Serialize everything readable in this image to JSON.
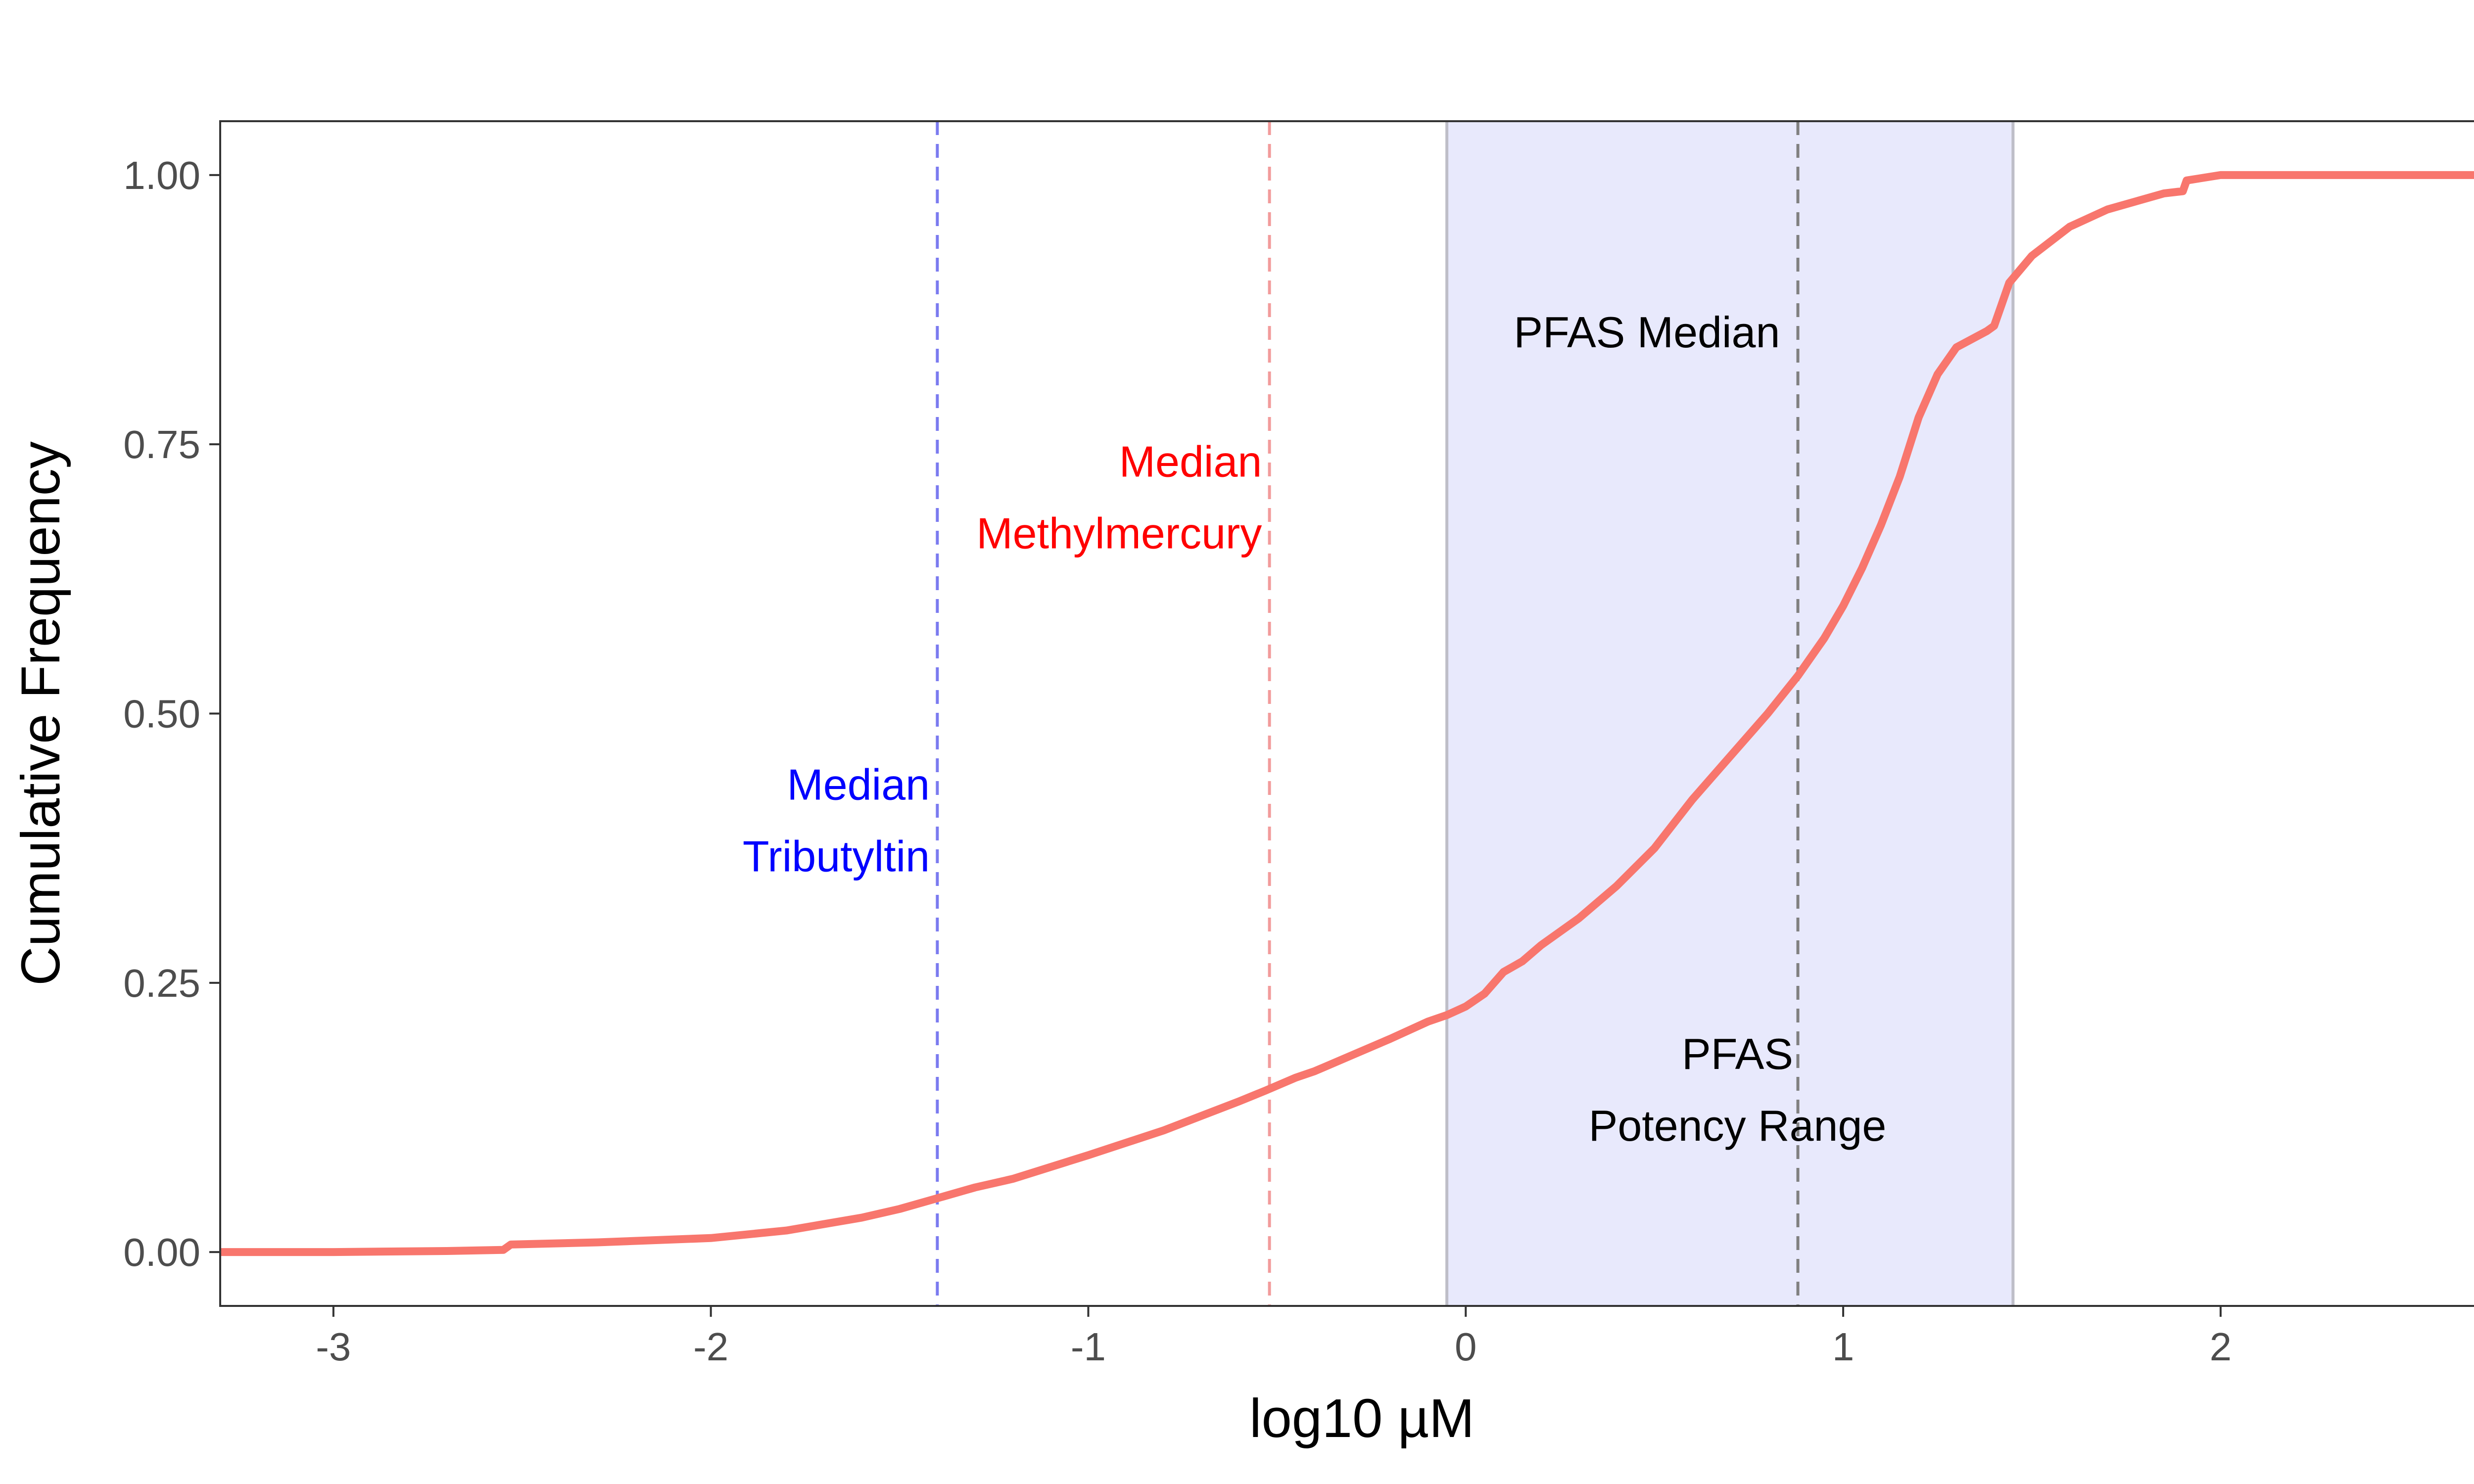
{
  "chart_data": {
    "type": "line",
    "title": "",
    "xlabel": "log10 µM",
    "ylabel": "Cumulative Frequency",
    "xlim": [
      -3.3,
      2.75
    ],
    "ylim": [
      -0.05,
      1.05
    ],
    "x_ticks": [
      -3,
      -2,
      -1,
      0,
      1,
      2
    ],
    "x_tick_labels": [
      "-3",
      "-2",
      "-1",
      "0",
      "1",
      "2"
    ],
    "y_ticks": [
      0,
      0.25,
      0.5,
      0.75,
      1.0
    ],
    "y_tick_labels": [
      "0.00",
      "0.25",
      "0.50",
      "0.75",
      "1.00"
    ],
    "grid": false,
    "legend": "none",
    "series": [
      {
        "color": "#F8766D",
        "x": [
          -3.3,
          -3.0,
          -2.7,
          -2.55,
          -2.53,
          -2.3,
          -2.0,
          -1.8,
          -1.6,
          -1.5,
          -1.4,
          -1.3,
          -1.2,
          -1.0,
          -0.8,
          -0.6,
          -0.53,
          -0.45,
          -0.4,
          -0.3,
          -0.2,
          -0.1,
          -0.05,
          0.0,
          0.05,
          0.1,
          0.15,
          0.2,
          0.3,
          0.35,
          0.4,
          0.5,
          0.6,
          0.65,
          0.7,
          0.8,
          0.88,
          0.95,
          1.0,
          1.05,
          1.1,
          1.15,
          1.2,
          1.25,
          1.3,
          1.38,
          1.4,
          1.42,
          1.44,
          1.5,
          1.6,
          1.7,
          1.85,
          1.9,
          1.91,
          2.0,
          2.75
        ],
        "y": [
          0.0,
          0.0,
          0.001,
          0.002,
          0.007,
          0.009,
          0.013,
          0.02,
          0.032,
          0.04,
          0.05,
          0.06,
          0.068,
          0.09,
          0.113,
          0.14,
          0.15,
          0.162,
          0.168,
          0.183,
          0.198,
          0.214,
          0.22,
          0.228,
          0.24,
          0.26,
          0.27,
          0.285,
          0.31,
          0.325,
          0.34,
          0.375,
          0.42,
          0.44,
          0.46,
          0.5,
          0.535,
          0.57,
          0.6,
          0.635,
          0.675,
          0.72,
          0.775,
          0.815,
          0.84,
          0.855,
          0.86,
          0.88,
          0.9,
          0.925,
          0.952,
          0.968,
          0.983,
          0.985,
          0.995,
          1.0,
          1.0
        ]
      }
    ],
    "shaded_region": {
      "x0": -0.05,
      "x1": 1.45,
      "fill": "#E8E9FC",
      "edge_color": "#BEBEC8"
    },
    "reference_lines": [
      {
        "x": -1.4,
        "color": "#7B7BF0",
        "style": "dashed"
      },
      {
        "x": -0.52,
        "color": "#F29B9B",
        "style": "dashed"
      },
      {
        "x": 0.88,
        "color": "#808080",
        "style": "dashed"
      }
    ],
    "annotations": [
      {
        "lines": [
          "Median",
          "Tributyltin"
        ],
        "color": "#0000FF",
        "x": -1.42,
        "y": 0.42,
        "anchor": "end"
      },
      {
        "lines": [
          "Median",
          "Methylmercury"
        ],
        "color": "#FF0000",
        "x": -0.54,
        "y": 0.72,
        "anchor": "end"
      },
      {
        "lines": [
          "PFAS Median"
        ],
        "color": "#000000",
        "x": 0.48,
        "y": 0.84,
        "anchor": "middle"
      },
      {
        "lines": [
          "PFAS",
          "Potency Range"
        ],
        "color": "#000000",
        "x": 0.72,
        "y": 0.17,
        "anchor": "middle"
      }
    ]
  }
}
